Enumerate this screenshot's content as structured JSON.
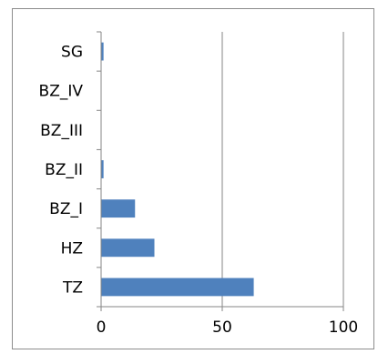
{
  "chart_data": {
    "type": "bar",
    "orientation": "horizontal",
    "categories": [
      "TZ",
      "HZ",
      "BZ_I",
      "BZ_II",
      "BZ_III",
      "BZ_IV",
      "SG"
    ],
    "values": [
      63,
      22,
      14,
      1,
      0,
      0,
      1
    ],
    "xlim": [
      0,
      100
    ],
    "x_ticks": [
      0,
      50,
      100
    ],
    "title": "",
    "xlabel": "",
    "ylabel": "",
    "grid": "vertical",
    "legend": "none",
    "bar_color": "#4f81bd",
    "grid_color": "#868686",
    "axis_color": "#868686"
  }
}
